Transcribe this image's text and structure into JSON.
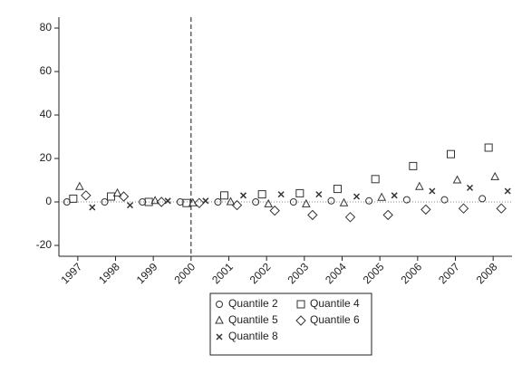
{
  "chart_data": {
    "type": "scatter",
    "categories": [
      "1997",
      "1998",
      "1999",
      "2000",
      "2001",
      "2002",
      "2003",
      "2004",
      "2005",
      "2006",
      "2007",
      "2008"
    ],
    "series": [
      {
        "name": "Quantile 2",
        "marker": "circle",
        "color": "#333333",
        "values": [
          0,
          0,
          0,
          0,
          0,
          0,
          0,
          0.5,
          0.5,
          1,
          1,
          1.5
        ]
      },
      {
        "name": "Quantile 4",
        "marker": "square",
        "color": "#333333",
        "values": [
          1.5,
          2.5,
          0,
          -0.5,
          3,
          3.5,
          4,
          6,
          10.5,
          16.5,
          22,
          25
        ]
      },
      {
        "name": "Quantile 5",
        "marker": "triangle",
        "color": "#333333",
        "values": [
          7,
          4,
          0.5,
          -0.5,
          0,
          -1,
          -1,
          -0.5,
          2,
          7,
          10,
          11.5
        ]
      },
      {
        "name": "Quantile 6",
        "marker": "diamond",
        "color": "#333333",
        "values": [
          3,
          2.5,
          0,
          -0.5,
          -1.5,
          -4,
          -6,
          -7,
          -6,
          -3.5,
          -3,
          -3
        ]
      },
      {
        "name": "Quantile 8",
        "marker": "x",
        "color": "#333333",
        "values": [
          -2.5,
          -1.5,
          0.5,
          0.5,
          3,
          3.5,
          3.5,
          2.5,
          3,
          5,
          6.5,
          5
        ]
      }
    ],
    "ylim": [
      -25,
      85
    ],
    "yticks": [
      -20,
      0,
      20,
      40,
      60,
      80
    ],
    "vline": "2000",
    "zero_line": true,
    "grid": false,
    "legend": "bottom"
  }
}
